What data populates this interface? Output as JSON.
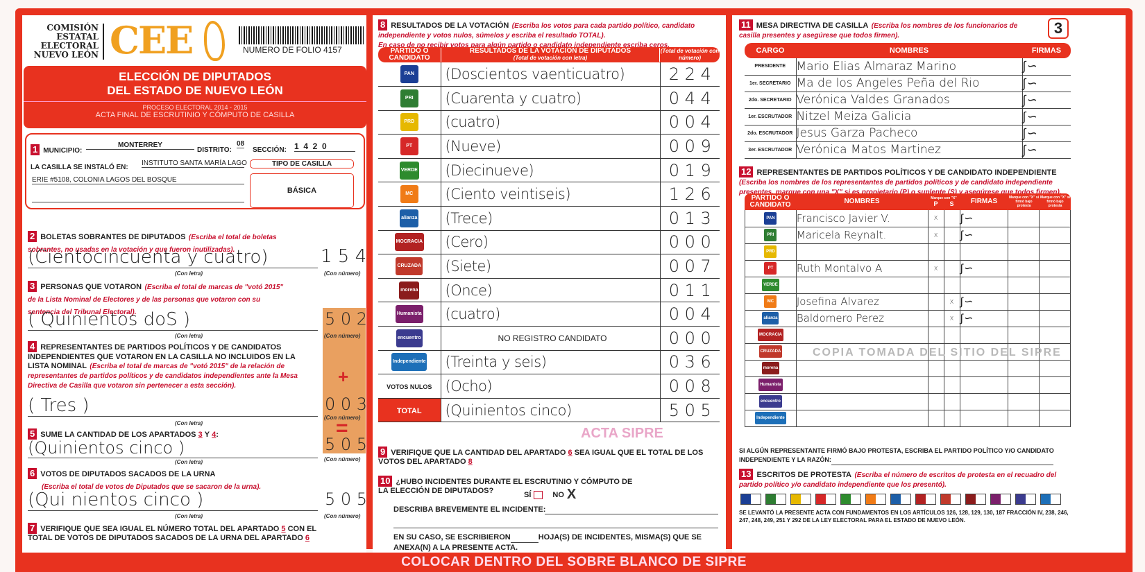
{
  "header": {
    "org_lines": [
      "COMISIÓN",
      "ESTATAL",
      "ELECTORAL",
      "NUEVO LEÓN"
    ],
    "logo": "CEE",
    "folio": "NUMERO DE FOLIO 4157",
    "title1": "ELECCIÓN DE DIPUTADOS",
    "title2": "DEL ESTADO DE NUEVO LEÓN",
    "process": "PROCESO ELECTORAL  2014 - 2015",
    "acta": "ACTA FINAL DE ESCRUTINIO Y CÓMPUTO DE CASILLA"
  },
  "s1": {
    "num": "1",
    "municipio_label": "MUNICIPIO:",
    "municipio": "MONTERREY",
    "distrito_label": "DISTRITO:",
    "distrito": "08",
    "seccion_label": "SECCIÓN:",
    "seccion": "1  4  2  0",
    "instalo_label": "LA CASILLA SE INSTALÓ EN:",
    "instalo1": "INSTITUTO SANTA MARÍA  LAGO",
    "instalo2": "ERIE #5108, COLONIA LAGOS DEL BOSQUE",
    "tipo_label": "TIPO DE CASILLA",
    "tipo": "BÁSICA"
  },
  "labels": {
    "con_letra": "(Con letra)",
    "con_numero": "(Con número)"
  },
  "s2": {
    "num": "2",
    "title": "BOLETAS SOBRANTES DE DIPUTADOS",
    "inst": "(Escriba el total de boletas sobrantes, no usadas en la votación y que fueron inutilizadas).",
    "letra": "(Cientocincuenta y cuatro)",
    "numero": "1 5 4"
  },
  "s3": {
    "num": "3",
    "title": "PERSONAS QUE VOTARON",
    "inst": "(Escriba el total de marcas de \"votó 2015\" de la Lista Nominal de Electores y de las personas que votaron con su sentencia del Tribunal Electoral).",
    "letra": "( Quinientos doS )",
    "numero": "5 0 2"
  },
  "s4": {
    "num": "4",
    "title": "REPRESENTANTES DE PARTIDOS POLÍTICOS Y DE CANDIDATOS INDEPENDIENTES QUE VOTARON EN LA CASILLA NO INCLUIDOS EN LA LISTA NOMINAL",
    "inst": "(Escriba el total de marcas de \"votó 2015\" de la relación de representantes de partidos políticos y de candidatos independientes ante la Mesa Directiva de Casilla que votaron sin pertenecer a esta sección).",
    "letra": "( Tres )",
    "numero": "0 0 3",
    "plus": "+"
  },
  "s5": {
    "num": "5",
    "title": "SUME LA CANTIDAD DE LOS APARTADOS",
    "a": "3",
    "y": "Y",
    "b": "4",
    "colon": ":",
    "letra": "(Quinientos  cinco )",
    "numero": "5 0 5",
    "equals": "="
  },
  "s6": {
    "num": "6",
    "title": "VOTOS DE DIPUTADOS SACADOS DE LA URNA",
    "inst": "(Escriba el total de votos de Diputados que se sacaron de la urna).",
    "letra": "(Qui nientos cinco )",
    "numero": "5 0 5"
  },
  "s7": {
    "num": "7",
    "t1": "VERIFIQUE QUE SEA IGUAL EL NÚMERO TOTAL DEL APARTADO",
    "a": "5",
    "t2": "CON EL TOTAL DE VOTOS DE DIPUTADOS SACADOS DE LA URNA DEL APARTADO",
    "b": "6"
  },
  "s8": {
    "num": "8",
    "title": "RESULTADOS DE LA VOTACIÓN",
    "inst1": "(Escriba los votos para cada partido político, candidato independiente y votos nulos, súmelos y escriba el resultado TOTAL).",
    "inst2": "En caso de no recibir votos para algún partido o candidato independiente escriba ceros.",
    "col1": "PARTIDO O CANDIDATO",
    "col2": "RESULTADOS DE LA VOTACIÓN DE DIPUTADOS",
    "col2sub": "(Total de votación con letra)",
    "col3": "(Total de votación con número)",
    "rows": [
      {
        "party": "PAN",
        "color": "#1b3f95",
        "letra": "(Doscientos vaenticuatro)",
        "numero": "2 2 4"
      },
      {
        "party": "PRI",
        "color": "#2e7d32",
        "letra": "(Cuarenta y cuatro)",
        "numero": "0 4 4"
      },
      {
        "party": "PRD",
        "color": "#e6b800",
        "letra": "(cuatro)",
        "numero": "0 0 4"
      },
      {
        "party": "PT",
        "color": "#d62828",
        "letra": "(Nueve)",
        "numero": "0 0 9"
      },
      {
        "party": "VERDE",
        "color": "#2e8b2e",
        "letra": "(Diecinueve)",
        "numero": "0 1 9"
      },
      {
        "party": "MC",
        "color": "#f07b16",
        "letra": "(Ciento veintiseis)",
        "numero": "1 2 6"
      },
      {
        "party": "alianza",
        "color": "#1d5fa8",
        "letra": "(Trece)",
        "numero": "0 1 3"
      },
      {
        "party": "MOCRACIA",
        "color": "#b22222",
        "letra": "(Cero)",
        "numero": "0 0 0"
      },
      {
        "party": "CRUZADA",
        "color": "#c0392b",
        "letra": "(Siete)",
        "numero": "0 0 7"
      },
      {
        "party": "morena",
        "color": "#8b1c1c",
        "letra": "(Once)",
        "numero": "0 1 1"
      },
      {
        "party": "Humanista",
        "color": "#7b1f6b",
        "letra": "(cuatro)",
        "numero": "0 0 4"
      },
      {
        "party": "encuentro",
        "color": "#3b3b8f",
        "letra": "NO REGISTRO CANDIDATO",
        "numero": "0 0 0"
      },
      {
        "party": "Independiente",
        "color": "#1d6fb8",
        "letra": "(Treinta y seis)",
        "numero": "0 3 6"
      }
    ],
    "nulos_label": "VOTOS NULOS",
    "nulos_letra": "(Ocho)",
    "nulos_numero": "0 0 8",
    "total_label": "TOTAL",
    "total_letra": "(Quinientos cinco)",
    "total_numero": "5 0 5",
    "watermark": "ACTA SIPRE"
  },
  "s9": {
    "num": "9",
    "t1": "VERIFIQUE QUE LA CANTIDAD DEL APARTADO",
    "a": "6",
    "t2": "SEA IGUAL QUE EL TOTAL DE LOS VOTOS DEL APARTADO",
    "b": "8"
  },
  "s10": {
    "num": "10",
    "q": "¿HUBO INCIDENTES DURANTE EL ESCRUTINIO Y CÓMPUTO DE LA ELECCIÓN DE DIPUTADOS?",
    "si": "SÍ",
    "no": "NO",
    "no_mark": "X",
    "describe": "DESCRIBA BREVEMENTE EL INCIDENTE:",
    "hojas1": "EN SU CASO, SE ESCRIBIERON",
    "hojas2": "HOJA(S) DE INCIDENTES, MISMA(S) QUE SE ANEXA(N) A LA PRESENTE ACTA."
  },
  "s11": {
    "num": "11",
    "title": "MESA DIRECTIVA DE CASILLA",
    "inst": "(Escriba los nombres de los funcionarios de casilla presentes y asegúrese que todos firmen).",
    "page": "3",
    "col1": "CARGO",
    "col2": "NOMBRES",
    "col3": "FIRMAS",
    "rows": [
      {
        "cargo": "PRESIDENTE",
        "nombre": "Mario Elias Almaraz Marino"
      },
      {
        "cargo": "1er. SECRETARIO",
        "nombre": "Ma de los Angeles Peña del Rio"
      },
      {
        "cargo": "2do. SECRETARIO",
        "nombre": "Verónica Valdes Granados"
      },
      {
        "cargo": "1er. ESCRUTADOR",
        "nombre": "Nitzel Meiza Galicia"
      },
      {
        "cargo": "2do. ESCRUTADOR",
        "nombre": "Jesus Garza Pacheco"
      },
      {
        "cargo": "3er. ESCRUTADOR",
        "nombre": "Verónica Matos Martinez"
      }
    ]
  },
  "s12": {
    "num": "12",
    "title": "REPRESENTANTES DE PARTIDOS POLÍTICOS Y DE CANDIDATO INDEPENDIENTE",
    "inst": "(Escriba los nombres de los representantes de partidos políticos y de candidato independiente presentes, marque con una \"X\" si es propietario (P) o suplente (S) y asegúrese que todos firmen).",
    "col1": "PARTIDO O CANDIDATO",
    "col2": "NOMBRES",
    "marque": "Marque con \"X\"",
    "p": "P",
    "s": "S",
    "col3": "FIRMAS",
    "col4": "Marque con \"X\" si firmó bajo protesta",
    "col5": "Marque con \"X\" si firmó bajo protesta",
    "rows": [
      {
        "party": "PAN",
        "color": "#1b3f95",
        "nombre": "Francisco Javier V.",
        "p": "X",
        "s": ""
      },
      {
        "party": "PRI",
        "color": "#2e7d32",
        "nombre": "Maricela Reynalt.",
        "p": "X",
        "s": ""
      },
      {
        "party": "PRD",
        "color": "#e6b800",
        "nombre": "",
        "p": "",
        "s": ""
      },
      {
        "party": "PT",
        "color": "#d62828",
        "nombre": "Ruth Montalvo A",
        "p": "X",
        "s": ""
      },
      {
        "party": "VERDE",
        "color": "#2e8b2e",
        "nombre": "",
        "p": "",
        "s": ""
      },
      {
        "party": "MC",
        "color": "#f07b16",
        "nombre": "Josefina Alvarez",
        "p": "",
        "s": "X"
      },
      {
        "party": "alianza",
        "color": "#1d5fa8",
        "nombre": "Baldomero Perez",
        "p": "",
        "s": "X"
      },
      {
        "party": "MOCRACIA",
        "color": "#b22222",
        "nombre": "",
        "p": "",
        "s": ""
      },
      {
        "party": "CRUZADA",
        "color": "#c0392b",
        "nombre": "",
        "p": "",
        "s": ""
      },
      {
        "party": "morena",
        "color": "#8b1c1c",
        "nombre": "",
        "p": "",
        "s": ""
      },
      {
        "party": "Humanista",
        "color": "#7b1f6b",
        "nombre": "",
        "p": "",
        "s": ""
      },
      {
        "party": "encuentro",
        "color": "#3b3b8f",
        "nombre": "",
        "p": "",
        "s": ""
      },
      {
        "party": "Independiente",
        "color": "#1d6fb8",
        "nombre": "",
        "p": "",
        "s": ""
      }
    ],
    "protesta": "SI ALGÚN REPRESENTANTE FIRMÓ BAJO PROTESTA, ESCRIBA EL PARTIDO POLÍTICO Y/O CANDIDATO INDEPENDIENTE Y LA RAZÓN:"
  },
  "s13": {
    "num": "13",
    "title": "ESCRITOS DE PROTESTA",
    "inst": "(Escriba el número de escritos de protesta en el recuadro del partido político y/o candidato independiente que los presentó).",
    "legal": "SE LEVANTÓ LA PRESENTE ACTA CON FUNDAMENTOS EN LOS ARTÍCULOS 126, 128, 129, 130, 187 FRACCIÓN IV, 238, 246, 247, 248, 249, 251 Y 292 DE LA LEY ELECTORAL PARA EL ESTADO DE NUEVO LEÓN."
  },
  "footer": {
    "banner": "COLOCAR DENTRO DEL SOBRE BLANCO DE SIPRE",
    "watermark": "COPIA TOMADA DEL SITIO DEL SIPRE"
  },
  "colors": {
    "red": "#e8321f",
    "orange_box": "#e9a060",
    "cee_orange": "#f0a020"
  }
}
